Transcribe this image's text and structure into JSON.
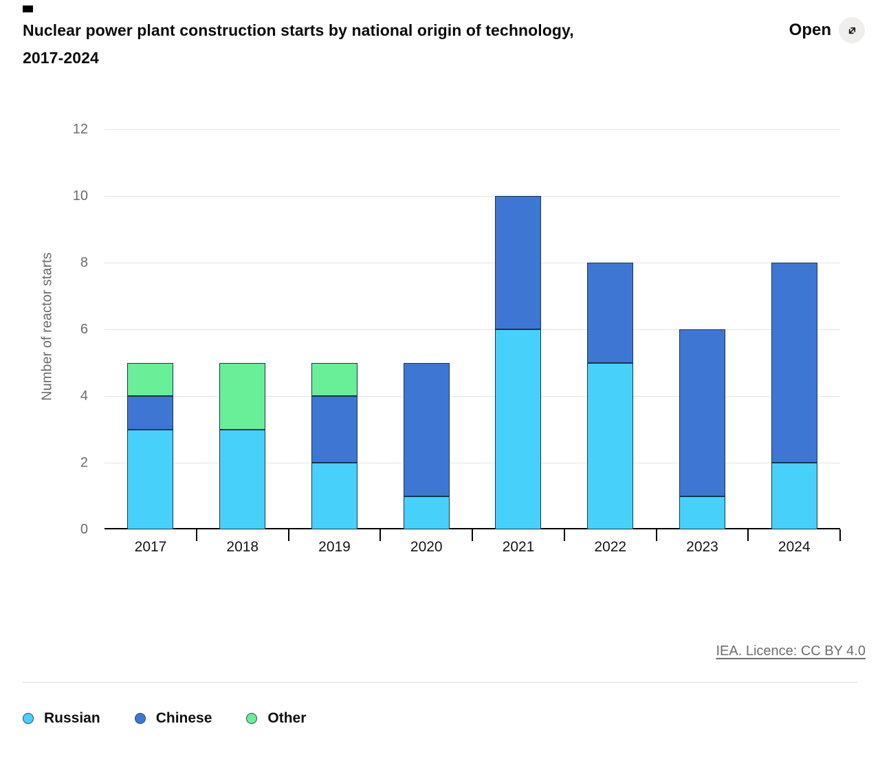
{
  "header": {
    "title_line1": "Nuclear power plant construction starts by national origin of technology,",
    "title_line2": "2017-2024",
    "open_label": "Open",
    "open_icon": "expand-diagonal-icon"
  },
  "chart_data": {
    "type": "bar",
    "stacked": true,
    "title": "Nuclear power plant construction starts by national origin of technology, 2017-2024",
    "xlabel": "",
    "ylabel": "Number of reactor starts",
    "categories": [
      "2017",
      "2018",
      "2019",
      "2020",
      "2021",
      "2022",
      "2023",
      "2024"
    ],
    "series": [
      {
        "name": "Russian",
        "color": "#47d1fa",
        "values": [
          3,
          3,
          2,
          1,
          6,
          5,
          1,
          2
        ]
      },
      {
        "name": "Chinese",
        "color": "#3e77d3",
        "values": [
          1,
          0,
          2,
          4,
          4,
          3,
          5,
          6
        ]
      },
      {
        "name": "Other",
        "color": "#68ef97",
        "values": [
          1,
          2,
          1,
          0,
          0,
          0,
          0,
          0
        ]
      }
    ],
    "ylim": [
      0,
      12
    ],
    "ytick_step": 2,
    "grid": true,
    "legend_position": "bottom",
    "bar_border_color": "#16354d",
    "axis_color": "#000000",
    "tick_label_color": "#6b6b6b"
  },
  "footer": {
    "attribution_link": "IEA. Licence: CC BY 4.0"
  }
}
